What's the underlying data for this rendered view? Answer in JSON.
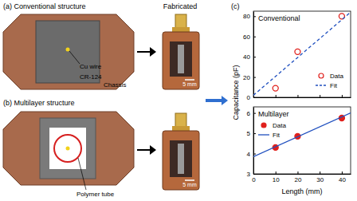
{
  "figure": {
    "panel_a": {
      "title": "(a) Conventional structure",
      "labels": [
        "Cu wire",
        "CR-124",
        "Chassis"
      ]
    },
    "panel_b": {
      "title": "(b) Multilayer structure",
      "labels": [
        "Polymer tube"
      ]
    },
    "fabricated": {
      "title": "Fabricated",
      "scale_bars": [
        "5 mm",
        "5 mm"
      ]
    },
    "panel_c": {
      "title": "(c)"
    }
  },
  "chart_data": [
    {
      "type": "scatter",
      "title": "Conventional",
      "xlim": [
        0,
        44
      ],
      "xticks": [
        0,
        10,
        20,
        30,
        40
      ],
      "ylim": [
        0,
        85
      ],
      "yticks": [
        0,
        20,
        40,
        60,
        80
      ],
      "tick_labels": "y",
      "legend": "lower right",
      "series": [
        {
          "name": "Data",
          "type": "scatter",
          "marker": "open-circle",
          "color": "#e0201c",
          "x": [
            10,
            20,
            40
          ],
          "values": [
            9,
            45,
            80
          ]
        },
        {
          "name": "Fit",
          "type": "line",
          "line_style": "dashed",
          "color": "#1f4fbf",
          "x": [
            0,
            44
          ],
          "values": [
            2,
            84
          ]
        }
      ]
    },
    {
      "type": "scatter",
      "title": "Multilayer",
      "xlabel": "Length (mm)",
      "ylabel": "Capacitance (pF)",
      "xlim": [
        0,
        44
      ],
      "xticks": [
        0,
        10,
        20,
        30,
        40
      ],
      "ylim": [
        3,
        6.3
      ],
      "yticks": [
        3,
        4,
        5,
        6
      ],
      "legend": "upper left",
      "series": [
        {
          "name": "Data",
          "type": "scatter",
          "marker": "filled-circle",
          "color": "#e0201c",
          "x": [
            10,
            20,
            40
          ],
          "values": [
            4.3,
            4.85,
            5.75
          ]
        },
        {
          "name": "Fit",
          "type": "line",
          "line_style": "solid",
          "color": "#1f4fbf",
          "x": [
            0,
            44
          ],
          "values": [
            3.85,
            6.0
          ]
        }
      ]
    }
  ]
}
